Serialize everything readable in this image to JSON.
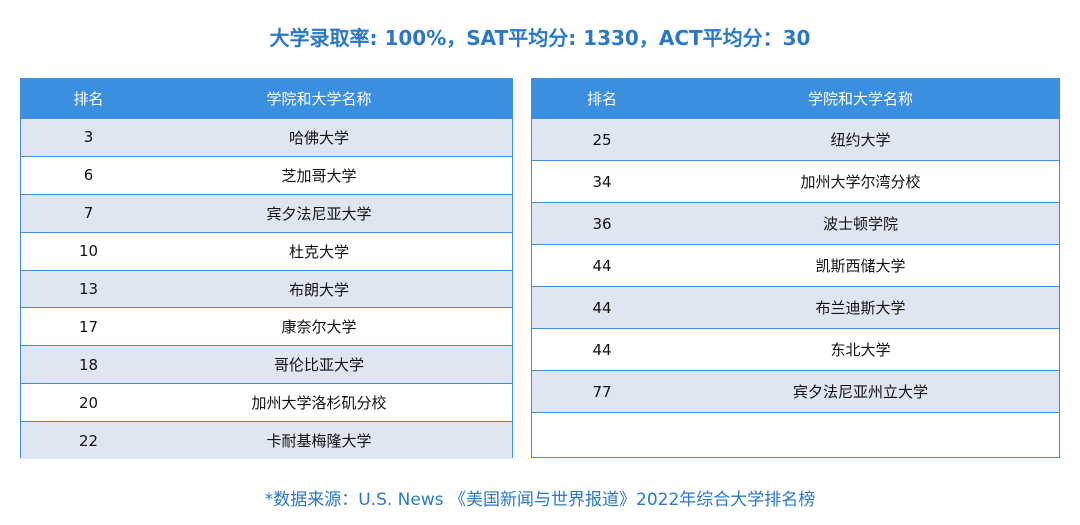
{
  "title": "大学录取率: 100%，SAT平均分: 1330，ACT平均分：30",
  "headers": {
    "rank": "排名",
    "name": "学院和大学名称"
  },
  "left_rows": [
    {
      "rank": "3",
      "name": "哈佛大学"
    },
    {
      "rank": "6",
      "name": "芝加哥大学"
    },
    {
      "rank": "7",
      "name": "宾夕法尼亚大学"
    },
    {
      "rank": "10",
      "name": "杜克大学"
    },
    {
      "rank": "13",
      "name": "布朗大学"
    },
    {
      "rank": "17",
      "name": "康奈尔大学"
    },
    {
      "rank": "18",
      "name": "哥伦比亚大学"
    },
    {
      "rank": "20",
      "name": "加州大学洛杉矶分校"
    },
    {
      "rank": "22",
      "name": "卡耐基梅隆大学"
    }
  ],
  "right_rows": [
    {
      "rank": "25",
      "name": "纽约大学"
    },
    {
      "rank": "34",
      "name": "加州大学尔湾分校"
    },
    {
      "rank": "36",
      "name": "波士顿学院"
    },
    {
      "rank": "44",
      "name": "凯斯西储大学"
    },
    {
      "rank": "44",
      "name": "布兰迪斯大学"
    },
    {
      "rank": "44",
      "name": "东北大学"
    },
    {
      "rank": "77",
      "name": "宾夕法尼亚州立大学"
    }
  ],
  "source": "*数据来源：U.S. News 《美国新闻与世界报道》2022年综合大学排名榜",
  "colors": {
    "accent": "#2b78c5",
    "header_bg": "#3a8fe0",
    "row_shade": "#dfe6f1"
  }
}
